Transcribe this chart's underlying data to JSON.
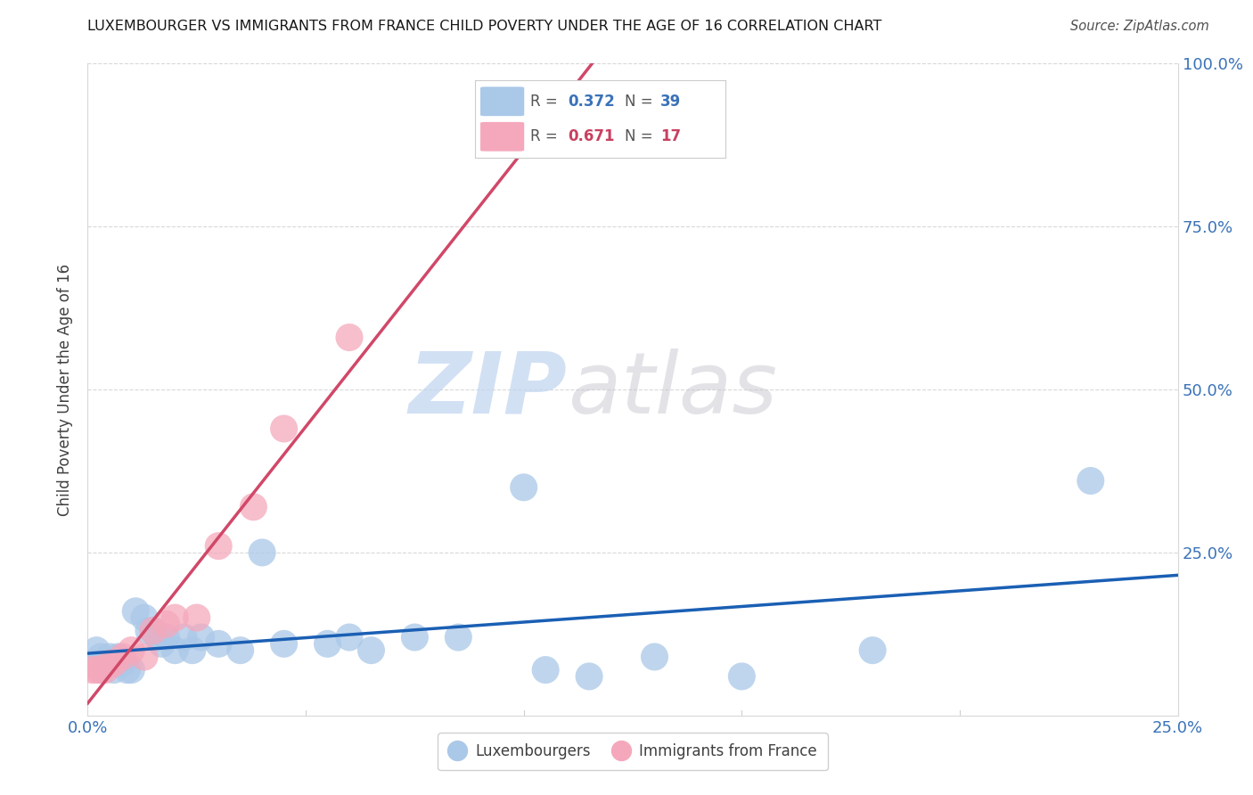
{
  "title": "LUXEMBOURGER VS IMMIGRANTS FROM FRANCE CHILD POVERTY UNDER THE AGE OF 16 CORRELATION CHART",
  "source": "Source: ZipAtlas.com",
  "ylabel": "Child Poverty Under the Age of 16",
  "xlim": [
    0.0,
    0.25
  ],
  "ylim": [
    0.0,
    1.0
  ],
  "xticks": [
    0.0,
    0.05,
    0.1,
    0.15,
    0.2,
    0.25
  ],
  "xtick_labels": [
    "0.0%",
    "",
    "",
    "",
    "",
    "25.0%"
  ],
  "yticks": [
    0.0,
    0.25,
    0.5,
    0.75,
    1.0
  ],
  "ytick_labels_right": [
    "",
    "25.0%",
    "50.0%",
    "75.0%",
    "100.0%"
  ],
  "blue_color": "#aac8e8",
  "pink_color": "#f5a8bc",
  "blue_line_color": "#1a5fb4",
  "pink_line_color": "#d04868",
  "lux_r": "0.372",
  "lux_n": "39",
  "fra_r": "0.671",
  "fra_n": "17",
  "lux_x": [
    0.001,
    0.002,
    0.003,
    0.003,
    0.004,
    0.005,
    0.006,
    0.006,
    0.007,
    0.008,
    0.009,
    0.01,
    0.011,
    0.013,
    0.014,
    0.015,
    0.016,
    0.017,
    0.018,
    0.02,
    0.022,
    0.024,
    0.026,
    0.03,
    0.035,
    0.04,
    0.045,
    0.055,
    0.06,
    0.065,
    0.075,
    0.085,
    0.1,
    0.105,
    0.115,
    0.13,
    0.15,
    0.18,
    0.23
  ],
  "lux_y": [
    0.08,
    0.1,
    0.09,
    0.07,
    0.08,
    0.09,
    0.08,
    0.07,
    0.09,
    0.08,
    0.07,
    0.07,
    0.16,
    0.15,
    0.13,
    0.13,
    0.12,
    0.11,
    0.12,
    0.1,
    0.12,
    0.1,
    0.12,
    0.11,
    0.1,
    0.25,
    0.11,
    0.11,
    0.12,
    0.1,
    0.12,
    0.12,
    0.35,
    0.07,
    0.06,
    0.09,
    0.06,
    0.1,
    0.36
  ],
  "fra_x": [
    0.001,
    0.002,
    0.003,
    0.004,
    0.005,
    0.006,
    0.008,
    0.01,
    0.013,
    0.015,
    0.018,
    0.02,
    0.025,
    0.03,
    0.038,
    0.045,
    0.06
  ],
  "fra_y": [
    0.07,
    0.07,
    0.07,
    0.07,
    0.08,
    0.08,
    0.09,
    0.1,
    0.09,
    0.13,
    0.14,
    0.15,
    0.15,
    0.26,
    0.32,
    0.44,
    0.58
  ]
}
